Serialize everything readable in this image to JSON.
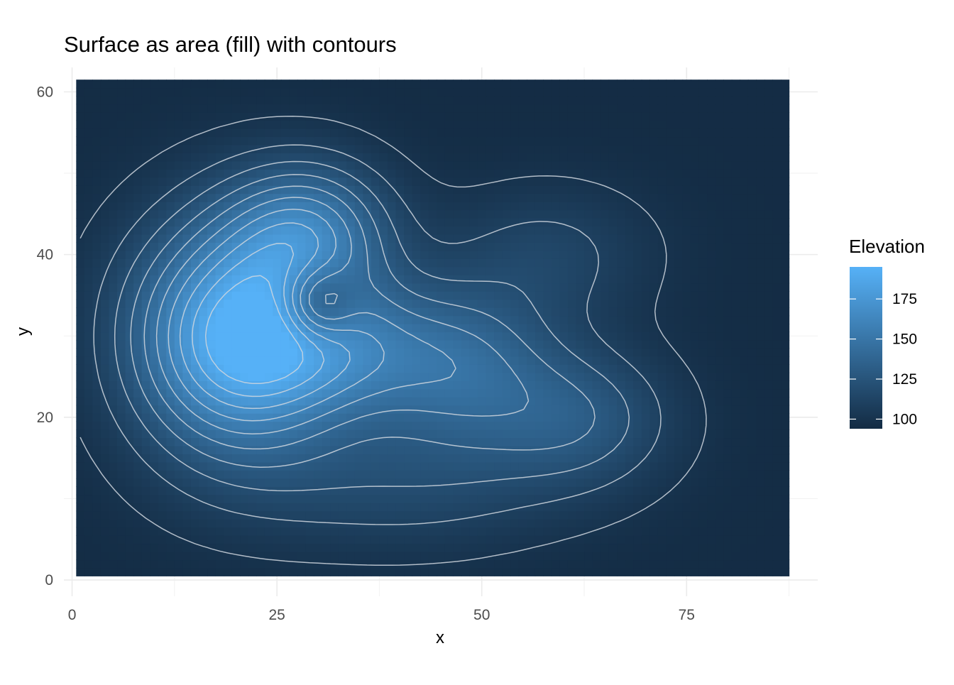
{
  "chart_data": {
    "type": "heatmap",
    "title": "Surface as area (fill) with contours",
    "xlabel": "x",
    "ylabel": "y",
    "xlim": [
      -1,
      91
    ],
    "ylim": [
      -2,
      63
    ],
    "data_extent": {
      "x": [
        0.5,
        87.5
      ],
      "y": [
        0.5,
        61.5
      ]
    },
    "x_ticks": [
      0,
      25,
      50,
      75
    ],
    "y_ticks": [
      0,
      20,
      40,
      60
    ],
    "x_tick_labels": [
      "0",
      "25",
      "50",
      "75"
    ],
    "y_tick_labels": [
      "0",
      "20",
      "40",
      "60"
    ],
    "grid": true,
    "legend": {
      "title": "Elevation",
      "placement": "right",
      "range": [
        94,
        195
      ],
      "ticks": [
        100,
        125,
        150,
        175
      ],
      "tick_labels": [
        "100",
        "125",
        "150",
        "175"
      ],
      "color_low": "#132b43",
      "color_high": "#56b1f7"
    },
    "z_base": 95,
    "surface_peaks": [
      {
        "x": 20,
        "y": 30,
        "height": 95,
        "sx": 9,
        "sy": 10
      },
      {
        "x": 29,
        "y": 43,
        "height": 50,
        "sx": 7,
        "sy": 6
      },
      {
        "x": 33,
        "y": 28,
        "height": 40,
        "sx": 9,
        "sy": 6
      },
      {
        "x": 48,
        "y": 26,
        "height": 38,
        "sx": 8,
        "sy": 7
      },
      {
        "x": 62,
        "y": 20,
        "height": 30,
        "sx": 8,
        "sy": 6
      },
      {
        "x": 40,
        "y": 12,
        "height": 20,
        "sx": 14,
        "sy": 6
      },
      {
        "x": 58,
        "y": 40,
        "height": 18,
        "sx": 9,
        "sy": 6
      }
    ],
    "surface_pit": {
      "x": 30,
      "y": 34,
      "depth": 40,
      "sx": 3.2,
      "sy": 3.2
    },
    "contour_levels": [
      100,
      110,
      120,
      130,
      140,
      150,
      160,
      170,
      180,
      190
    ]
  }
}
